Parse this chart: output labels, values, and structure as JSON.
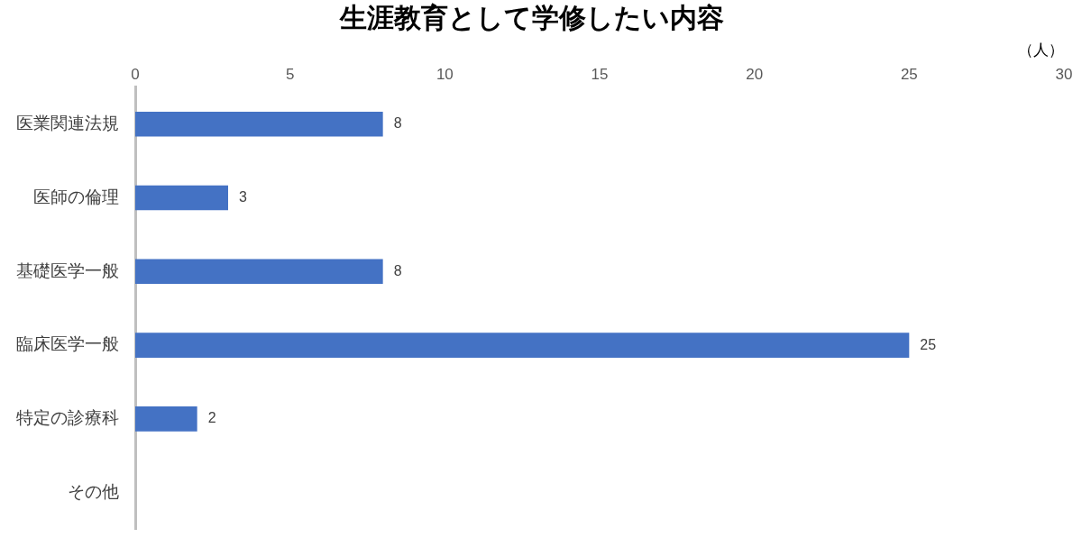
{
  "chart_data": {
    "type": "bar",
    "orientation": "horizontal",
    "title": "生涯教育として学修したい内容",
    "xlabel": "（人）",
    "categories": [
      "医業関連法規",
      "医師の倫理",
      "基礎医学一般",
      "臨床医学一般",
      "特定の診療科",
      "その他"
    ],
    "values": [
      8,
      3,
      8,
      25,
      2,
      0
    ],
    "value_labels": [
      "8",
      "3",
      "8",
      "25",
      "2",
      null
    ],
    "color": "#4472c4",
    "xlim": [
      0,
      30
    ],
    "xticks": [
      0,
      5,
      10,
      15,
      20,
      25,
      30
    ]
  }
}
